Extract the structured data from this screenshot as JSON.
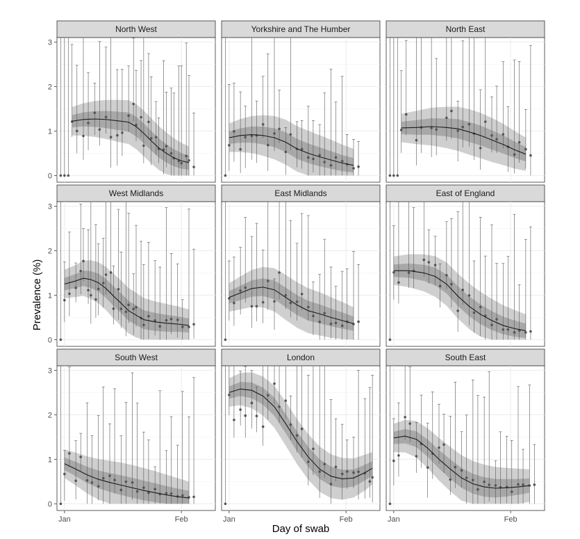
{
  "chart_data": {
    "type": "line",
    "xlabel": "Day of swab",
    "ylabel": "Prevalence (%)",
    "x_ticks": [
      "Jan",
      "Feb"
    ],
    "ylim": [
      0,
      3
    ],
    "y_ticks": [
      0,
      1,
      2,
      3
    ],
    "grid": true,
    "facets": [
      {
        "name": "North West",
        "fit": [
          [
            2,
            1.22
          ],
          [
            5,
            1.26
          ],
          [
            8,
            1.27
          ],
          [
            11,
            1.26
          ],
          [
            14,
            1.23
          ],
          [
            17,
            1.2
          ],
          [
            19,
            1.1
          ],
          [
            21,
            0.95
          ],
          [
            23,
            0.78
          ],
          [
            25,
            0.62
          ],
          [
            27,
            0.5
          ],
          [
            29,
            0.4
          ],
          [
            31,
            0.33
          ],
          [
            33,
            0.29
          ]
        ]
      },
      {
        "name": "Yorkshire and The Humber",
        "fit": [
          [
            0,
            0.85
          ],
          [
            3,
            0.9
          ],
          [
            6,
            0.92
          ],
          [
            9,
            0.9
          ],
          [
            12,
            0.85
          ],
          [
            15,
            0.75
          ],
          [
            18,
            0.6
          ],
          [
            21,
            0.5
          ],
          [
            24,
            0.42
          ],
          [
            27,
            0.35
          ],
          [
            30,
            0.28
          ],
          [
            33,
            0.23
          ]
        ]
      },
      {
        "name": "North East",
        "fit": [
          [
            2,
            1.07
          ],
          [
            6,
            1.08
          ],
          [
            10,
            1.1
          ],
          [
            14,
            1.08
          ],
          [
            17,
            1.05
          ],
          [
            20,
            0.98
          ],
          [
            23,
            0.9
          ],
          [
            26,
            0.8
          ],
          [
            29,
            0.7
          ],
          [
            32,
            0.58
          ],
          [
            35,
            0.48
          ]
        ]
      },
      {
        "name": "West Midlands",
        "fit": [
          [
            0,
            1.25
          ],
          [
            3,
            1.32
          ],
          [
            5,
            1.38
          ],
          [
            7,
            1.35
          ],
          [
            9,
            1.28
          ],
          [
            11,
            1.15
          ],
          [
            13,
            0.98
          ],
          [
            15,
            0.82
          ],
          [
            17,
            0.65
          ],
          [
            19,
            0.55
          ],
          [
            21,
            0.45
          ],
          [
            24,
            0.4
          ],
          [
            27,
            0.37
          ],
          [
            30,
            0.35
          ],
          [
            33,
            0.32
          ]
        ]
      },
      {
        "name": "East Midlands",
        "fit": [
          [
            0,
            0.95
          ],
          [
            3,
            1.05
          ],
          [
            6,
            1.15
          ],
          [
            9,
            1.18
          ],
          [
            12,
            1.12
          ],
          [
            15,
            0.95
          ],
          [
            18,
            0.78
          ],
          [
            21,
            0.65
          ],
          [
            24,
            0.58
          ],
          [
            27,
            0.5
          ],
          [
            30,
            0.43
          ],
          [
            33,
            0.36
          ]
        ]
      },
      {
        "name": "East of England",
        "fit": [
          [
            0,
            1.55
          ],
          [
            4,
            1.55
          ],
          [
            8,
            1.5
          ],
          [
            11,
            1.42
          ],
          [
            14,
            1.25
          ],
          [
            17,
            0.98
          ],
          [
            20,
            0.75
          ],
          [
            23,
            0.57
          ],
          [
            26,
            0.43
          ],
          [
            29,
            0.32
          ],
          [
            32,
            0.25
          ],
          [
            35,
            0.2
          ]
        ]
      },
      {
        "name": "South West",
        "fit": [
          [
            0,
            0.9
          ],
          [
            3,
            0.78
          ],
          [
            6,
            0.65
          ],
          [
            9,
            0.55
          ],
          [
            12,
            0.48
          ],
          [
            15,
            0.42
          ],
          [
            18,
            0.36
          ],
          [
            21,
            0.3
          ],
          [
            24,
            0.25
          ],
          [
            27,
            0.2
          ],
          [
            30,
            0.16
          ],
          [
            33,
            0.13
          ]
        ]
      },
      {
        "name": "London",
        "fit": [
          [
            0,
            2.5
          ],
          [
            3,
            2.58
          ],
          [
            6,
            2.55
          ],
          [
            9,
            2.42
          ],
          [
            12,
            2.18
          ],
          [
            15,
            1.8
          ],
          [
            18,
            1.4
          ],
          [
            21,
            1.05
          ],
          [
            24,
            0.78
          ],
          [
            27,
            0.62
          ],
          [
            30,
            0.56
          ],
          [
            33,
            0.58
          ],
          [
            36,
            0.7
          ],
          [
            38,
            0.8
          ]
        ]
      },
      {
        "name": "South East",
        "fit": [
          [
            0,
            1.48
          ],
          [
            3,
            1.52
          ],
          [
            6,
            1.45
          ],
          [
            9,
            1.25
          ],
          [
            12,
            1
          ],
          [
            15,
            0.78
          ],
          [
            18,
            0.58
          ],
          [
            21,
            0.45
          ],
          [
            24,
            0.38
          ],
          [
            27,
            0.35
          ],
          [
            30,
            0.36
          ],
          [
            33,
            0.38
          ],
          [
            36,
            0.41
          ]
        ]
      }
    ]
  }
}
